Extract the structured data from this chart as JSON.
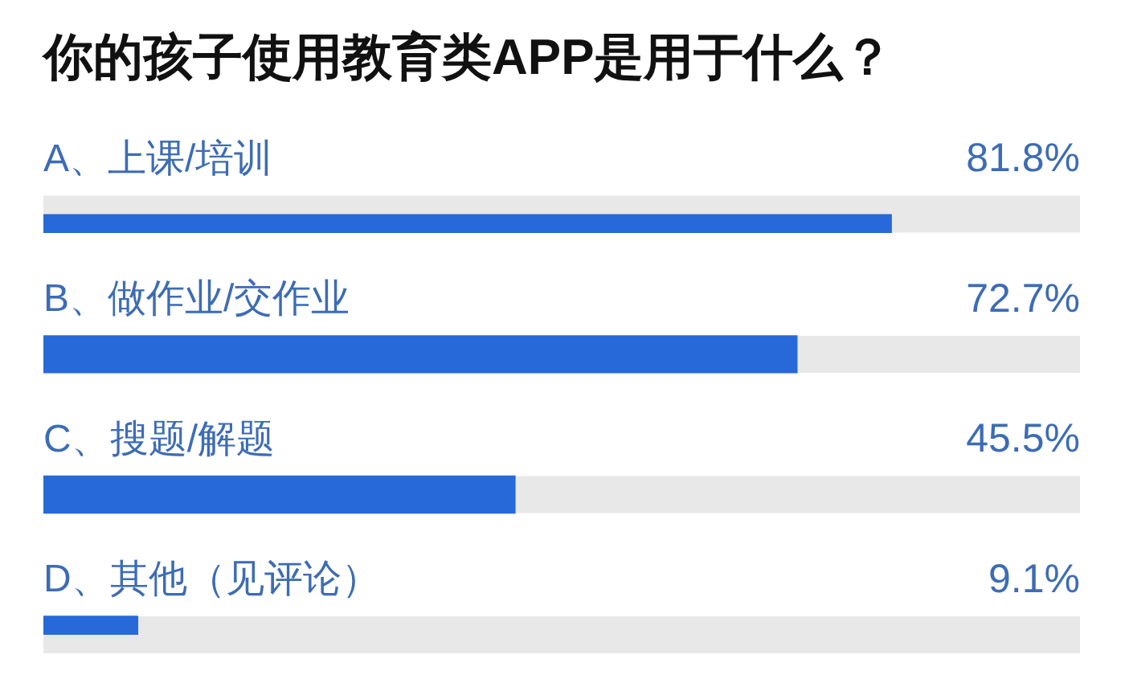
{
  "chart_data": {
    "type": "bar",
    "orientation": "horizontal",
    "title": "你的孩子使用教育类APP是用于什么？",
    "categories": [
      "A、上课/培训",
      "B、做作业/交作业",
      "C、搜题/解题",
      "D、其他（见评论）"
    ],
    "values": [
      81.8,
      72.7,
      45.5,
      9.1
    ],
    "value_labels": [
      "81.8%",
      "72.7%",
      "45.5%",
      "9.1%"
    ],
    "color": "#2769d8",
    "xlim": [
      0,
      100
    ],
    "tick_labels": "y"
  }
}
